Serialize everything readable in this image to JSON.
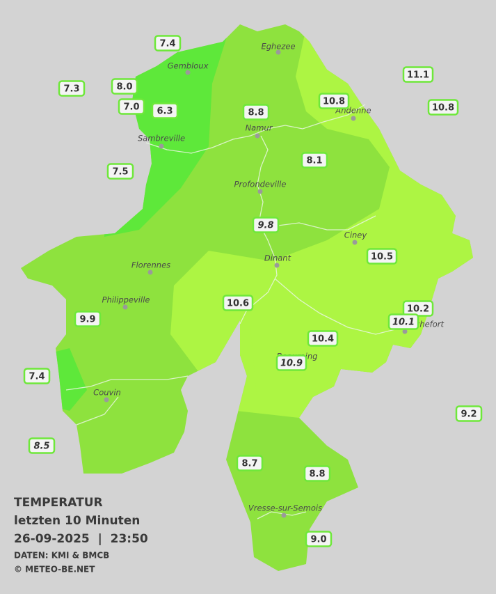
{
  "map": {
    "towns": [
      "Eghezee",
      "Gembloux",
      "Andenne",
      "Namur",
      "Sambreville",
      "Profondeville",
      "Ciney",
      "Dinant",
      "Florennes",
      "Philippeville",
      "Rochefort",
      "Beauraing",
      "Couvin",
      "Vresse-sur-Semois"
    ],
    "stations": [
      {
        "value": "7.4"
      },
      {
        "value": "8.0"
      },
      {
        "value": "7.3"
      },
      {
        "value": "7.0"
      },
      {
        "value": "6.3"
      },
      {
        "value": "8.8"
      },
      {
        "value": "10.8"
      },
      {
        "value": "11.1"
      },
      {
        "value": "10.8"
      },
      {
        "value": "8.1"
      },
      {
        "value": "7.5"
      },
      {
        "value": "9.8",
        "italic": true
      },
      {
        "value": "10.5"
      },
      {
        "value": "10.6"
      },
      {
        "value": "10.2"
      },
      {
        "value": "10.1",
        "italic": true
      },
      {
        "value": "9.9"
      },
      {
        "value": "10.4"
      },
      {
        "value": "10.9",
        "italic": true
      },
      {
        "value": "7.4"
      },
      {
        "value": "9.2"
      },
      {
        "value": "8.5",
        "italic": true
      },
      {
        "value": "8.7"
      },
      {
        "value": "8.8"
      },
      {
        "value": "9.0"
      }
    ],
    "title": "TEMPERATUR",
    "subtitle": "letzten 10 Minuten",
    "datetime": "26-09-2025  |  23:50",
    "source": "DATEN: KMI & BMCB",
    "copyright": "© METEO-BE.NET"
  }
}
